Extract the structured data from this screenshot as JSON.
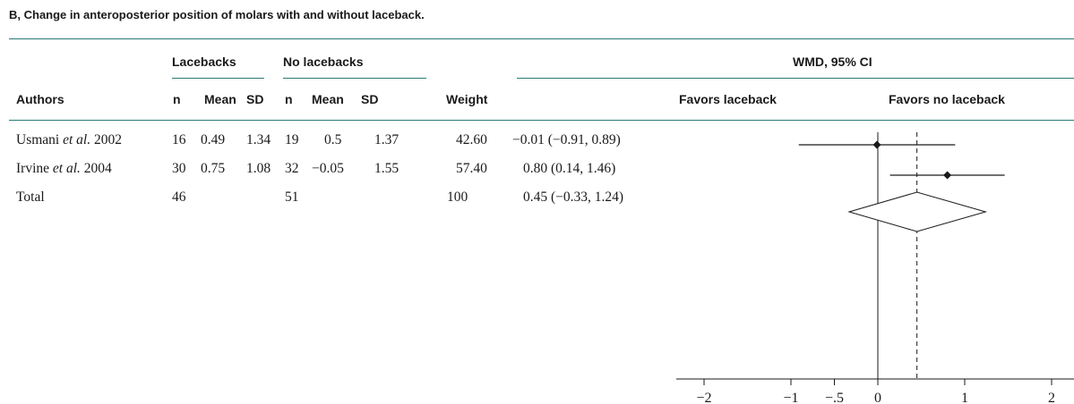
{
  "title": "B, Change in anteroposterior position of molars with and without laceback.",
  "group_headers": {
    "lacebacks": "Lacebacks",
    "no_lacebacks": "No lacebacks",
    "wmd": "WMD, 95% CI"
  },
  "columns": {
    "authors": "Authors",
    "n1": "n",
    "mean1": "Mean",
    "sd1": "SD",
    "n2": "n",
    "mean2": "Mean",
    "sd2": "SD",
    "weight": "Weight",
    "favors_left": "Favors laceback",
    "favors_right": "Favors no laceback"
  },
  "rows": [
    {
      "author_name": "Usmani ",
      "author_etal": "et al.",
      "author_year": " 2002",
      "n1": "16",
      "mean1": "0.49",
      "sd1": "1.34",
      "n2": "19",
      "mean2": "0.5",
      "sd2": "1.37",
      "weight": "42.60",
      "ci_text": "−0.01 (−0.91, 0.89)"
    },
    {
      "author_name": "Irvine ",
      "author_etal": "et al.",
      "author_year": " 2004",
      "n1": "30",
      "mean1": "0.75",
      "sd1": "1.08",
      "n2": "32",
      "mean2": "−0.05",
      "sd2": "1.55",
      "weight": "57.40",
      "ci_text": "0.80 (0.14, 1.46)"
    },
    {
      "author_name": "Total",
      "author_etal": "",
      "author_year": "",
      "n1": "46",
      "mean1": "",
      "sd1": "",
      "n2": "51",
      "mean2": "",
      "sd2": "",
      "weight": "100",
      "ci_text": "0.45 (−0.33, 1.24)"
    }
  ],
  "chart_data": {
    "type": "forest",
    "studies": [
      {
        "label": "Usmani et al. 2002",
        "estimate": -0.01,
        "lower": -0.91,
        "upper": 0.89
      },
      {
        "label": "Irvine et al. 2004",
        "estimate": 0.8,
        "lower": 0.14,
        "upper": 1.46
      }
    ],
    "pooled": {
      "label": "Total",
      "estimate": 0.45,
      "lower": -0.33,
      "upper": 1.24
    },
    "null_line": 0,
    "xlim": [
      -2.25,
      2.0
    ],
    "ticks": [
      -2,
      -1,
      -0.5,
      0,
      1,
      2
    ],
    "tick_labels": [
      "−2",
      "−1",
      "−.5",
      "0",
      "1",
      "2"
    ]
  }
}
